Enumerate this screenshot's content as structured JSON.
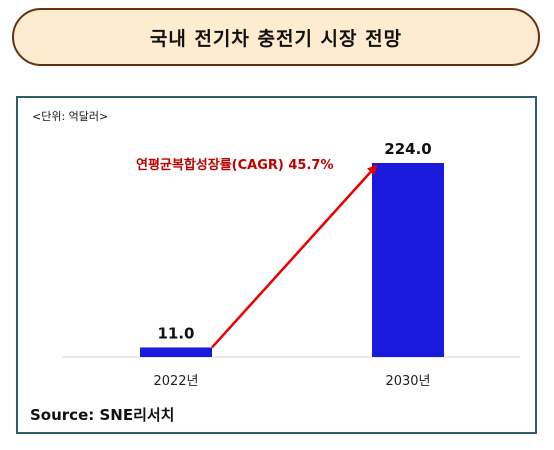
{
  "title": "국내 전기차 충전기 시장 전망",
  "unit_label": "<단위: 억달러>",
  "source": "Source: SNE리서치",
  "annotation": "연평균복합성장률(CAGR) 45.7%",
  "colors": {
    "bar": "#1a1adc",
    "arrow": "#e60000",
    "annotation": "#c00000"
  },
  "chart_data": {
    "type": "bar",
    "categories": [
      "2022년",
      "2030년"
    ],
    "values": [
      11.0,
      224.0
    ],
    "data_labels": [
      "11.0",
      "224.0"
    ],
    "title": "국내 전기차 충전기 시장 전망",
    "xlabel": "",
    "ylabel": "",
    "ylim": [
      0,
      224.0
    ],
    "grid": false,
    "legend": "none"
  }
}
